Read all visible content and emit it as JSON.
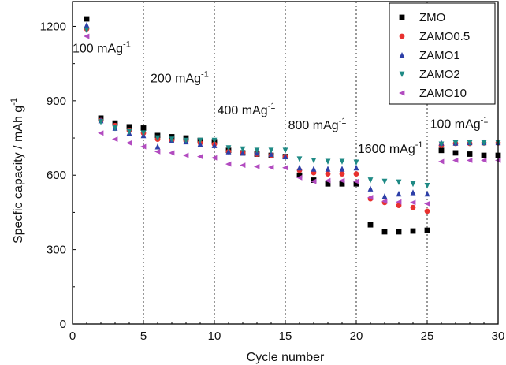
{
  "chart_data": {
    "type": "scatter",
    "title": "",
    "xlabel": "Cycle number",
    "ylabel": "Specfic capacity / mAh g",
    "ylabel_sup": "-1",
    "xlim": [
      0,
      30
    ],
    "ylim": [
      0,
      1300
    ],
    "xticks": [
      0,
      5,
      10,
      15,
      20,
      25,
      30
    ],
    "yticks": [
      0,
      300,
      600,
      900,
      1200
    ],
    "grid": false,
    "legend_position": "top-right",
    "dividers_x": [
      5,
      10,
      15,
      20,
      25
    ],
    "annotations": [
      {
        "text": "100 mAg",
        "sup": "-1",
        "x": 0.0,
        "y": 1095
      },
      {
        "text": "200 mAg",
        "sup": "-1",
        "x": 5.5,
        "y": 975
      },
      {
        "text": "400 mAg",
        "sup": "-1",
        "x": 10.2,
        "y": 845
      },
      {
        "text": "800 mAg",
        "sup": "-1",
        "x": 15.2,
        "y": 785
      },
      {
        "text": "1600 mAg",
        "sup": "-1",
        "x": 20.1,
        "y": 690
      },
      {
        "text": "100 mAg",
        "sup": "-1",
        "x": 25.2,
        "y": 790
      }
    ],
    "series": [
      {
        "name": "ZMO",
        "marker": "square",
        "color": "#000000",
        "x": [
          1,
          2,
          3,
          4,
          5,
          6,
          7,
          8,
          9,
          10,
          11,
          12,
          13,
          14,
          15,
          16,
          17,
          18,
          19,
          20,
          21,
          22,
          23,
          24,
          25,
          26,
          27,
          28,
          29,
          30
        ],
        "y": [
          1230,
          830,
          810,
          795,
          790,
          760,
          755,
          750,
          740,
          735,
          700,
          690,
          685,
          680,
          675,
          600,
          580,
          565,
          565,
          565,
          400,
          372,
          372,
          375,
          378,
          700,
          690,
          685,
          680,
          680
        ]
      },
      {
        "name": "ZAMO0.5",
        "marker": "circle",
        "color": "#e8312f",
        "x": [
          1,
          2,
          3,
          4,
          5,
          6,
          7,
          8,
          9,
          10,
          11,
          12,
          13,
          14,
          15,
          16,
          17,
          18,
          19,
          20,
          21,
          22,
          23,
          24,
          25,
          26,
          27,
          28,
          29,
          30
        ],
        "y": [
          1190,
          820,
          800,
          780,
          770,
          745,
          740,
          738,
          730,
          725,
          695,
          690,
          685,
          680,
          675,
          620,
          610,
          605,
          605,
          605,
          505,
          490,
          478,
          470,
          455,
          720,
          728,
          728,
          730,
          730
        ]
      },
      {
        "name": "ZAMO1",
        "marker": "triangle-up",
        "color": "#2d3fa8",
        "x": [
          1,
          2,
          3,
          4,
          5,
          6,
          7,
          8,
          9,
          10,
          11,
          12,
          13,
          14,
          15,
          16,
          17,
          18,
          19,
          20,
          21,
          22,
          23,
          24,
          25,
          26,
          27,
          28,
          29,
          30
        ],
        "y": [
          1205,
          820,
          790,
          770,
          760,
          715,
          740,
          735,
          725,
          720,
          695,
          690,
          690,
          685,
          675,
          630,
          625,
          625,
          625,
          630,
          545,
          515,
          525,
          530,
          525,
          730,
          730,
          732,
          732,
          732
        ]
      },
      {
        "name": "ZAMO2",
        "marker": "triangle-down",
        "color": "#1f8a85",
        "x": [
          1,
          2,
          3,
          4,
          5,
          6,
          7,
          8,
          9,
          10,
          11,
          12,
          13,
          14,
          15,
          16,
          17,
          18,
          19,
          20,
          21,
          22,
          23,
          24,
          25,
          26,
          27,
          28,
          29,
          30
        ],
        "y": [
          1185,
          815,
          790,
          775,
          770,
          750,
          745,
          740,
          740,
          740,
          710,
          705,
          700,
          700,
          700,
          665,
          660,
          655,
          655,
          652,
          580,
          575,
          572,
          565,
          558,
          725,
          730,
          730,
          730,
          730
        ]
      },
      {
        "name": "ZAMO10",
        "marker": "triangle-left",
        "color": "#b24bc0",
        "x": [
          1,
          2,
          3,
          4,
          5,
          6,
          7,
          8,
          9,
          10,
          11,
          12,
          13,
          14,
          15,
          16,
          17,
          18,
          19,
          20,
          21,
          22,
          23,
          24,
          25,
          26,
          27,
          28,
          29,
          30
        ],
        "y": [
          1160,
          770,
          745,
          730,
          715,
          695,
          690,
          680,
          675,
          670,
          645,
          640,
          635,
          632,
          630,
          590,
          575,
          578,
          578,
          575,
          510,
          495,
          492,
          490,
          485,
          655,
          660,
          660,
          660,
          660
        ]
      }
    ]
  }
}
